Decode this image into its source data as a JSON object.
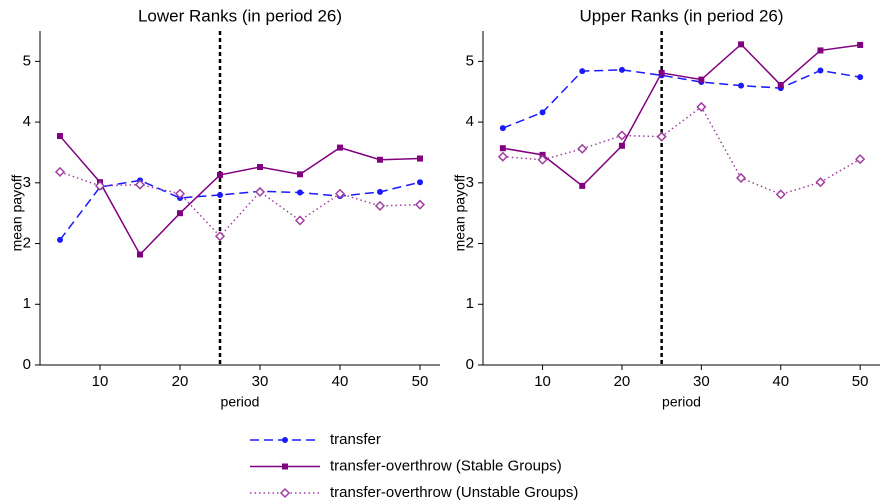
{
  "chart_data": [
    {
      "type": "line",
      "title": "Lower Ranks (in period 26)",
      "x_label": "period",
      "y_label": "mean payoff",
      "x": [
        5,
        10,
        15,
        20,
        25,
        30,
        35,
        40,
        45,
        50
      ],
      "xlim": [
        2.5,
        52.5
      ],
      "ylim": [
        0,
        5.5
      ],
      "xticks": [
        10,
        20,
        30,
        40,
        50
      ],
      "yticks": [
        0,
        1,
        2,
        3,
        4,
        5
      ],
      "vline": 25,
      "series": [
        {
          "name": "transfer",
          "color": "#1a1aff",
          "dash": "dashed",
          "marker": "circle",
          "values": [
            2.06,
            2.93,
            3.04,
            2.75,
            2.8,
            2.86,
            2.84,
            2.78,
            2.85,
            3.01
          ]
        },
        {
          "name": "transfer-overthrow (Stable Groups)",
          "color": "#800080",
          "dash": "solid",
          "marker": "square",
          "values": [
            3.77,
            3.01,
            1.82,
            2.5,
            3.13,
            3.26,
            3.14,
            3.58,
            3.38,
            3.4
          ]
        },
        {
          "name": "transfer-overthrow (Unstable Groups)",
          "color": "#a040a0",
          "dash": "dotted",
          "marker": "diamond",
          "values": [
            3.18,
            2.95,
            2.97,
            2.82,
            2.12,
            2.85,
            2.38,
            2.82,
            2.62,
            2.64
          ]
        }
      ]
    },
    {
      "type": "line",
      "title": "Upper Ranks (in period 26)",
      "x_label": "period",
      "y_label": "mean payoff",
      "x": [
        5,
        10,
        15,
        20,
        25,
        30,
        35,
        40,
        45,
        50
      ],
      "xlim": [
        2.5,
        52.5
      ],
      "ylim": [
        0,
        5.5
      ],
      "xticks": [
        10,
        20,
        30,
        40,
        50
      ],
      "yticks": [
        0,
        1,
        2,
        3,
        4,
        5
      ],
      "vline": 25,
      "series": [
        {
          "color": "#1a1aff",
          "dash": "dashed",
          "marker": "circle",
          "values": [
            3.9,
            4.16,
            4.84,
            4.86,
            4.77,
            4.66,
            4.6,
            4.56,
            4.85,
            4.74
          ]
        },
        {
          "color": "#800080",
          "dash": "solid",
          "marker": "square",
          "values": [
            3.57,
            3.46,
            2.95,
            3.61,
            4.81,
            4.7,
            5.28,
            4.61,
            5.18,
            5.27
          ]
        },
        {
          "color": "#a040a0",
          "dash": "dotted",
          "marker": "diamond",
          "values": [
            3.43,
            3.38,
            3.56,
            3.78,
            3.76,
            4.25,
            3.08,
            2.81,
            3.01,
            3.39
          ]
        }
      ]
    }
  ]
}
